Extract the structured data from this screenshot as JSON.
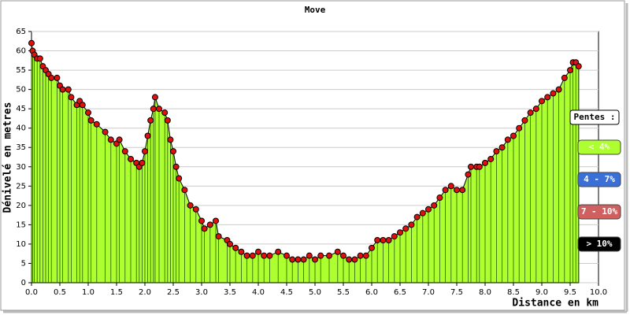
{
  "chart_data": {
    "type": "area",
    "title": "Move",
    "x_label": "Distance en km",
    "y_label": "Dénivelé en metres",
    "x": [
      0.0,
      0.02,
      0.05,
      0.1,
      0.15,
      0.2,
      0.25,
      0.3,
      0.35,
      0.45,
      0.5,
      0.55,
      0.65,
      0.7,
      0.8,
      0.85,
      0.9,
      1.0,
      1.05,
      1.15,
      1.3,
      1.4,
      1.5,
      1.55,
      1.65,
      1.75,
      1.85,
      1.9,
      1.95,
      2.0,
      2.05,
      2.1,
      2.15,
      2.18,
      2.25,
      2.35,
      2.4,
      2.45,
      2.5,
      2.55,
      2.6,
      2.7,
      2.8,
      2.9,
      3.0,
      3.05,
      3.15,
      3.25,
      3.3,
      3.45,
      3.5,
      3.6,
      3.7,
      3.8,
      3.9,
      4.0,
      4.1,
      4.2,
      4.35,
      4.5,
      4.6,
      4.7,
      4.8,
      4.9,
      5.0,
      5.1,
      5.25,
      5.4,
      5.5,
      5.6,
      5.7,
      5.8,
      5.9,
      6.0,
      6.1,
      6.2,
      6.3,
      6.4,
      6.5,
      6.6,
      6.7,
      6.8,
      6.9,
      7.0,
      7.1,
      7.2,
      7.3,
      7.4,
      7.5,
      7.6,
      7.7,
      7.75,
      7.85,
      7.9,
      8.0,
      8.1,
      8.2,
      8.3,
      8.4,
      8.5,
      8.6,
      8.7,
      8.8,
      8.9,
      9.0,
      9.1,
      9.2,
      9.3,
      9.4,
      9.5,
      9.55,
      9.6,
      9.65
    ],
    "series": [
      {
        "color": "#adff2f",
        "values": [
          62,
          60,
          59,
          58,
          58,
          56,
          55,
          54,
          53,
          53,
          51,
          50,
          50,
          48,
          46,
          47,
          46,
          44,
          42,
          41,
          39,
          37,
          36,
          37,
          34,
          32,
          31,
          30,
          31,
          34,
          38,
          42,
          45,
          48,
          45,
          44,
          42,
          37,
          34,
          30,
          27,
          24,
          20,
          19,
          16,
          14,
          15,
          16,
          12,
          11,
          10,
          9,
          8,
          7,
          7,
          8,
          7,
          7,
          8,
          7,
          6,
          6,
          6,
          7,
          6,
          7,
          7,
          8,
          7,
          6,
          6,
          7,
          7,
          9,
          11,
          11,
          11,
          12,
          13,
          14,
          15,
          17,
          18,
          19,
          20,
          22,
          24,
          25,
          24,
          24,
          28,
          30,
          30,
          30,
          31,
          32,
          34,
          35,
          37,
          38,
          40,
          42,
          44,
          45,
          47,
          48,
          49,
          50,
          53,
          55,
          57,
          57,
          56
        ]
      }
    ],
    "point_color": "#e01010",
    "xlim": [
      0,
      10
    ],
    "ylim": [
      0,
      65
    ],
    "xticks": [
      {
        "value": 0,
        "label": "0.0"
      },
      0.5,
      {
        "value": 1,
        "label": "1.0"
      },
      1.5,
      {
        "value": 2,
        "label": "2.0"
      },
      2.5,
      {
        "value": 3,
        "label": "3.0"
      },
      3.5,
      {
        "value": 4,
        "label": "4.0"
      },
      4.5,
      {
        "value": 5,
        "label": "5.0"
      },
      5.5,
      {
        "value": 6,
        "label": "6.0"
      },
      6.5,
      {
        "value": 7,
        "label": "7.0"
      },
      7.5,
      {
        "value": 8,
        "label": "8.0"
      },
      8.5,
      {
        "value": 9,
        "label": "9.0"
      },
      9.5,
      {
        "value": 10,
        "label": "10.0"
      }
    ],
    "yticks": [
      0,
      5,
      10,
      15,
      20,
      25,
      30,
      35,
      40,
      45,
      50,
      55,
      60,
      65
    ],
    "grid": true,
    "slope_legend": {
      "title": "Pentes :",
      "items": [
        {
          "label": "< 4%",
          "color": "#adff2f"
        },
        {
          "label": "4 - 7%",
          "color": "#3a6fd8"
        },
        {
          "label": "7 - 10%",
          "color": "#d06060"
        },
        {
          "label": "> 10%",
          "color": "#000000"
        }
      ]
    }
  }
}
